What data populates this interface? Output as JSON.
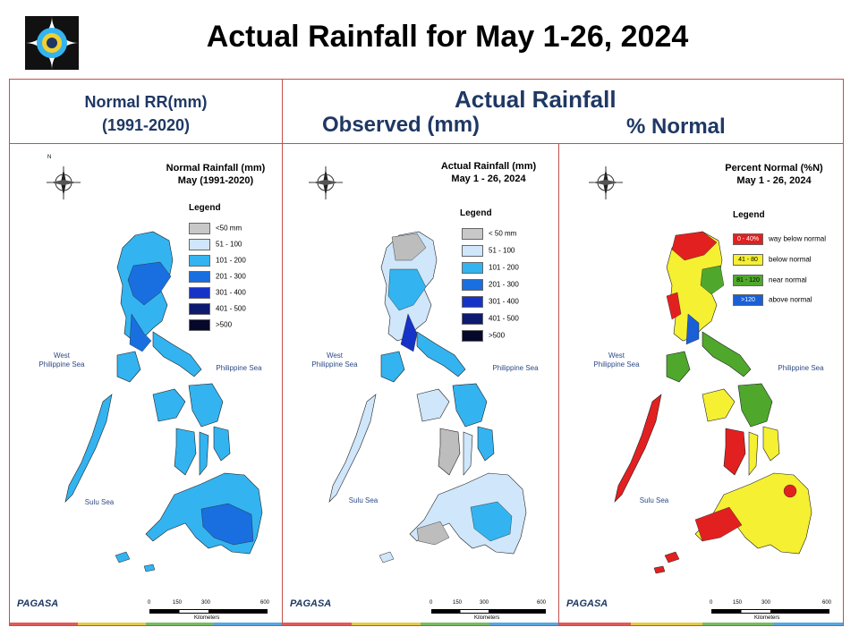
{
  "title": "Actual Rainfall for May 1-26, 2024",
  "header": {
    "normal_line1": "Normal RR(mm)",
    "normal_line2": "(1991-2020)",
    "actual": "Actual Rainfall",
    "observed": "Observed (mm)",
    "percent": "% Normal"
  },
  "panels": [
    {
      "title1": "Normal Rainfall (mm)",
      "title2": "May (1991-2020)",
      "legend_title": "Legend",
      "legend": [
        {
          "label": "<50 mm",
          "color": "#c8c8c8"
        },
        {
          "label": "51 - 100",
          "color": "#cfe6fb"
        },
        {
          "label": "101 - 200",
          "color": "#33b4f0"
        },
        {
          "label": "201 - 300",
          "color": "#1a6fe0"
        },
        {
          "label": "301 - 400",
          "color": "#1633c8"
        },
        {
          "label": "401 - 500",
          "color": "#0c1a70"
        },
        {
          "label": ">500",
          "color": "#05082a"
        }
      ]
    },
    {
      "title1": "Actual Rainfall (mm)",
      "title2": "May 1 - 26, 2024",
      "legend_title": "Legend",
      "legend": [
        {
          "label": "< 50 mm",
          "color": "#c8c8c8"
        },
        {
          "label": "51 - 100",
          "color": "#cfe6fb"
        },
        {
          "label": "101 - 200",
          "color": "#33b4f0"
        },
        {
          "label": "201 - 300",
          "color": "#1a6fe0"
        },
        {
          "label": "301 - 400",
          "color": "#1633c8"
        },
        {
          "label": "401 - 500",
          "color": "#0c1a70"
        },
        {
          "label": ">500",
          "color": "#05082a"
        }
      ]
    },
    {
      "title1": "Percent Normal (%N)",
      "title2": "May 1 - 26, 2024",
      "legend_title": "Legend",
      "legend": [
        {
          "label": "0 - 40%",
          "desc": "way below normal",
          "color": "#e32020"
        },
        {
          "label": "41 - 80",
          "desc": "below normal",
          "color": "#f5f032"
        },
        {
          "label": "81 - 120",
          "desc": "near normal",
          "color": "#4fa82c"
        },
        {
          "label": ">120",
          "desc": "above normal",
          "color": "#1a5fd6"
        }
      ]
    }
  ],
  "labels": {
    "west": "West",
    "west2": "Philippine Sea",
    "ph_sea": "Philippine Sea",
    "sulu": "Sulu Sea",
    "km": "Kilometers",
    "scale": [
      "0",
      "150",
      "300",
      "600"
    ],
    "north": "N",
    "south": "S",
    "east": "E",
    "westdir": "W",
    "pagasa": "PAGASA"
  },
  "map_colors": {
    "normal_fill": "#33b4f0",
    "normal_dark": "#1a6fe0",
    "actual_fill": "#cfe6fb",
    "actual_mid": "#33b4f0",
    "actual_gray": "#bdbdbd",
    "pct_yellow": "#f5f032",
    "pct_red": "#e32020",
    "pct_green": "#4fa82c",
    "pct_blue": "#1a5fd6"
  }
}
